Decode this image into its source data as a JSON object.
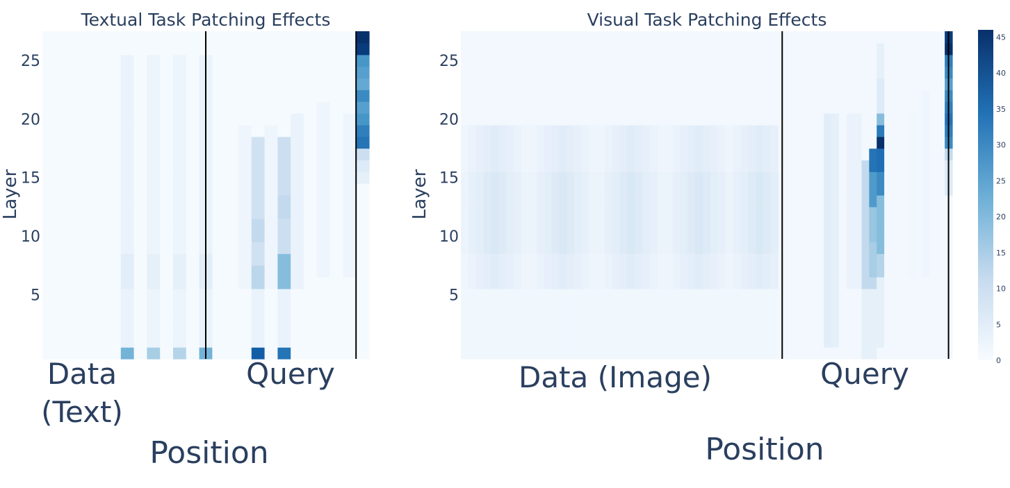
{
  "chart_data": [
    {
      "type": "heatmap",
      "title": "Textual Task Patching Effects",
      "ylabel": "Layer",
      "xlabel": "Position",
      "x_regions": [
        {
          "label_lines": [
            "Data",
            "(Text)"
          ]
        },
        {
          "label_lines": [
            "Query"
          ]
        }
      ],
      "yticks": [
        5,
        10,
        15,
        20,
        25
      ],
      "layers": 28,
      "positions": 25,
      "region_boundaries": [
        12.5,
        24
      ],
      "colorscale": "Blues",
      "background_value": 0.5,
      "cells": [
        {
          "x": 6,
          "y": [
            0,
            0
          ],
          "v": 22
        },
        {
          "x": 8,
          "y": [
            0,
            0
          ],
          "v": 16
        },
        {
          "x": 10,
          "y": [
            0,
            0
          ],
          "v": 14
        },
        {
          "x": 12,
          "y": [
            0,
            0
          ],
          "v": 22
        },
        {
          "x": 16,
          "y": [
            0,
            0
          ],
          "v": 38
        },
        {
          "x": 18,
          "y": [
            0,
            0
          ],
          "v": 34
        },
        {
          "x": 6,
          "y": [
            1,
            25
          ],
          "v": 3
        },
        {
          "x": 8,
          "y": [
            1,
            25
          ],
          "v": 2.5
        },
        {
          "x": 10,
          "y": [
            1,
            25
          ],
          "v": 2.5
        },
        {
          "x": 12,
          "y": [
            1,
            25
          ],
          "v": 3
        },
        {
          "x": 6,
          "y": [
            6,
            8
          ],
          "v": 5
        },
        {
          "x": 8,
          "y": [
            6,
            8
          ],
          "v": 4
        },
        {
          "x": 10,
          "y": [
            6,
            8
          ],
          "v": 4
        },
        {
          "x": 12,
          "y": [
            6,
            8
          ],
          "v": 5
        },
        {
          "x": 16,
          "y": [
            1,
            5
          ],
          "v": 3
        },
        {
          "x": 16,
          "y": [
            6,
            18
          ],
          "v": 9
        },
        {
          "x": 16,
          "y": [
            6,
            7
          ],
          "v": 13
        },
        {
          "x": 16,
          "y": [
            10,
            11
          ],
          "v": 12
        },
        {
          "x": 18,
          "y": [
            1,
            5
          ],
          "v": 3
        },
        {
          "x": 18,
          "y": [
            6,
            18
          ],
          "v": 10
        },
        {
          "x": 18,
          "y": [
            6,
            8
          ],
          "v": 20
        },
        {
          "x": 18,
          "y": [
            12,
            13
          ],
          "v": 12
        },
        {
          "x": 15,
          "y": [
            6,
            19
          ],
          "v": 2
        },
        {
          "x": 17,
          "y": [
            6,
            19
          ],
          "v": 2
        },
        {
          "x": 19,
          "y": [
            6,
            20
          ],
          "v": 3
        },
        {
          "x": 21,
          "y": [
            7,
            21
          ],
          "v": 2
        },
        {
          "x": 23,
          "y": [
            7,
            20
          ],
          "v": 2
        },
        {
          "x": 24,
          "y": [
            27,
            27
          ],
          "v": 46
        },
        {
          "x": 24,
          "y": [
            26,
            26
          ],
          "v": 44
        },
        {
          "x": 24,
          "y": [
            25,
            25
          ],
          "v": 28
        },
        {
          "x": 24,
          "y": [
            24,
            24
          ],
          "v": 26
        },
        {
          "x": 24,
          "y": [
            23,
            23
          ],
          "v": 24
        },
        {
          "x": 24,
          "y": [
            22,
            22
          ],
          "v": 30
        },
        {
          "x": 24,
          "y": [
            21,
            21
          ],
          "v": 26
        },
        {
          "x": 24,
          "y": [
            20,
            20
          ],
          "v": 28
        },
        {
          "x": 24,
          "y": [
            19,
            19
          ],
          "v": 32
        },
        {
          "x": 24,
          "y": [
            18,
            18
          ],
          "v": 34
        },
        {
          "x": 24,
          "y": [
            17,
            17
          ],
          "v": 10
        },
        {
          "x": 24,
          "y": [
            16,
            16
          ],
          "v": 6
        },
        {
          "x": 24,
          "y": [
            15,
            15
          ],
          "v": 4
        }
      ]
    },
    {
      "type": "heatmap",
      "title": "Visual Task Patching Effects",
      "ylabel": "Layer",
      "xlabel": "Position",
      "x_regions": [
        {
          "label_lines": [
            "Data (Image)"
          ]
        },
        {
          "label_lines": [
            "Query"
          ]
        }
      ],
      "yticks": [
        5,
        10,
        15,
        20,
        25
      ],
      "layers": 28,
      "positions": 65,
      "region_boundaries": [
        42.5,
        64.5
      ],
      "colorscale": "Blues",
      "background_value": 1,
      "colorbar": {
        "ticks": [
          0,
          5,
          10,
          15,
          20,
          25,
          30,
          35,
          40,
          45
        ],
        "max": 46
      },
      "image_band": {
        "x": [
          0,
          41
        ],
        "y": [
          6,
          19
        ],
        "v": 6,
        "peaks": [
          4,
          13,
          22,
          31,
          39
        ]
      },
      "cells": [
        {
          "x": 48,
          "y": [
            1,
            20
          ],
          "v": 5
        },
        {
          "x": 49,
          "y": [
            1,
            20
          ],
          "v": 4
        },
        {
          "x": 51,
          "y": [
            6,
            20
          ],
          "v": 3
        },
        {
          "x": 52,
          "y": [
            6,
            20
          ],
          "v": 3
        },
        {
          "x": 53,
          "y": [
            6,
            16
          ],
          "v": 12
        },
        {
          "x": 53,
          "y": [
            0,
            5
          ],
          "v": 4
        },
        {
          "x": 54,
          "y": [
            6,
            16
          ],
          "v": 12
        },
        {
          "x": 54,
          "y": [
            7,
            9
          ],
          "v": 16
        },
        {
          "x": 54,
          "y": [
            10,
            12
          ],
          "v": 18
        },
        {
          "x": 54,
          "y": [
            13,
            15
          ],
          "v": 27
        },
        {
          "x": 54,
          "y": [
            16,
            17
          ],
          "v": 34
        },
        {
          "x": 54,
          "y": [
            0,
            5
          ],
          "v": 4
        },
        {
          "x": 55,
          "y": [
            1,
            26
          ],
          "v": 4
        },
        {
          "x": 55,
          "y": [
            7,
            8
          ],
          "v": 14
        },
        {
          "x": 55,
          "y": [
            9,
            13
          ],
          "v": 20
        },
        {
          "x": 55,
          "y": [
            14,
            15
          ],
          "v": 30
        },
        {
          "x": 55,
          "y": [
            16,
            17
          ],
          "v": 35
        },
        {
          "x": 55,
          "y": [
            18,
            18
          ],
          "v": 46
        },
        {
          "x": 55,
          "y": [
            19,
            19
          ],
          "v": 33
        },
        {
          "x": 55,
          "y": [
            20,
            20
          ],
          "v": 20
        },
        {
          "x": 55,
          "y": [
            21,
            23
          ],
          "v": 6
        },
        {
          "x": 64,
          "y": [
            27,
            27
          ],
          "v": 44
        },
        {
          "x": 64,
          "y": [
            26,
            26
          ],
          "v": 46
        },
        {
          "x": 64,
          "y": [
            25,
            25
          ],
          "v": 32
        },
        {
          "x": 64,
          "y": [
            24,
            24
          ],
          "v": 30
        },
        {
          "x": 64,
          "y": [
            23,
            23
          ],
          "v": 26
        },
        {
          "x": 64,
          "y": [
            22,
            22
          ],
          "v": 30
        },
        {
          "x": 64,
          "y": [
            21,
            21
          ],
          "v": 32
        },
        {
          "x": 64,
          "y": [
            20,
            20
          ],
          "v": 34
        },
        {
          "x": 64,
          "y": [
            19,
            19
          ],
          "v": 32
        },
        {
          "x": 64,
          "y": [
            18,
            18
          ],
          "v": 30
        },
        {
          "x": 64,
          "y": [
            17,
            17
          ],
          "v": 12
        },
        {
          "x": 64,
          "y": [
            14,
            16
          ],
          "v": 6
        },
        {
          "x": 61,
          "y": [
            7,
            22
          ],
          "v": 2
        },
        {
          "x": 59,
          "y": [
            7,
            20
          ],
          "v": 1.5
        }
      ]
    }
  ]
}
